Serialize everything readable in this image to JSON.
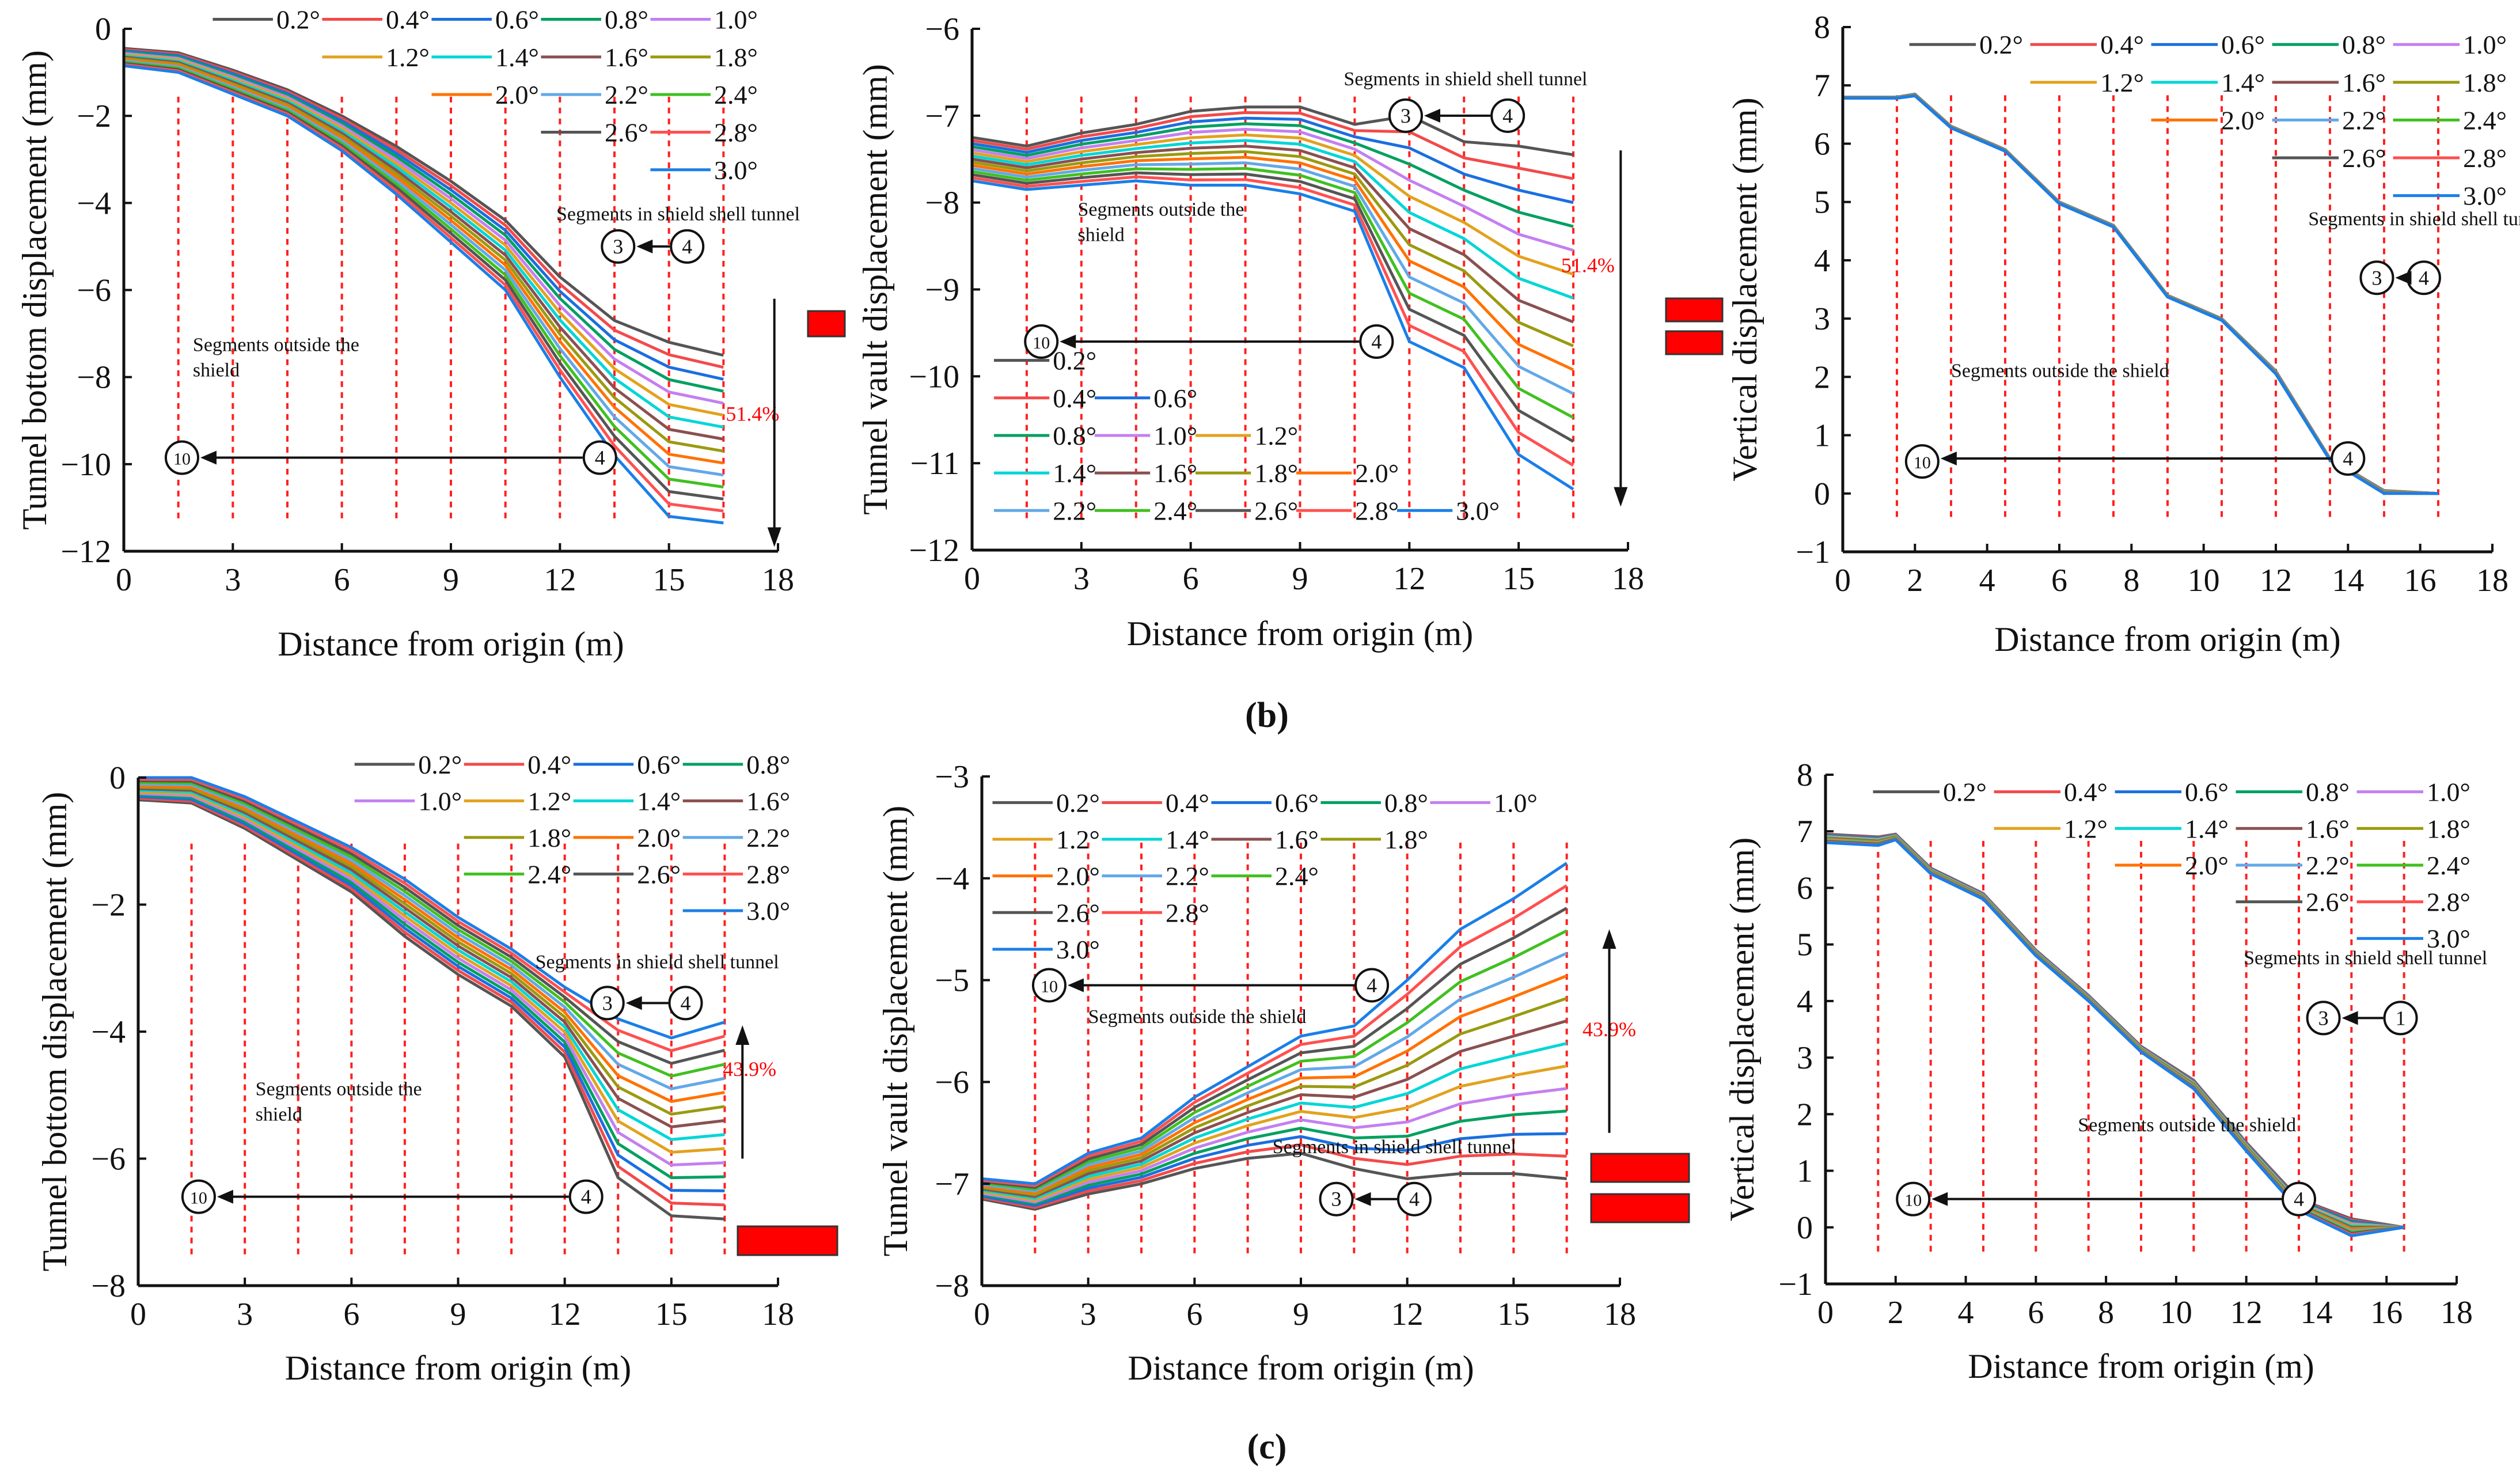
{
  "figure_labels": {
    "b": "(b)",
    "c": "(c)"
  },
  "chart_data": [
    {
      "id": "b-bottom",
      "type": "line",
      "xlabel": "Distance from origin (m)",
      "ylabel": "Tunnel bottom displacement (mm)",
      "xlim": [
        0,
        18
      ],
      "ylim": [
        -12,
        0
      ],
      "xticks": [
        0,
        3,
        6,
        9,
        12,
        15,
        18
      ],
      "yticks": [
        0,
        -2,
        -4,
        -6,
        -8,
        -10,
        -12
      ],
      "x": [
        0,
        1.5,
        3,
        4.5,
        6,
        7.5,
        9,
        10.5,
        12,
        13.5,
        15,
        16.5
      ],
      "series_first": [
        -0.45,
        -0.55,
        -0.95,
        -1.4,
        -2.0,
        -2.7,
        -3.5,
        -4.4,
        -5.7,
        -6.7,
        -7.2,
        -7.5
      ],
      "series_last": [
        -0.85,
        -1.0,
        -1.5,
        -2.0,
        -2.8,
        -3.8,
        -4.9,
        -6.0,
        -8.0,
        -9.8,
        -11.2,
        -11.35
      ],
      "legend_rows": [
        [
          "0.2°",
          "0.4°",
          "0.6°",
          "0.8°",
          "1.0°"
        ],
        [
          "1.2°",
          "1.4°",
          "1.6°",
          "1.8°"
        ],
        [
          "2.0°",
          "2.2°",
          "2.4°"
        ],
        [
          "2.6°",
          "2.8°"
        ],
        [
          "3.0°"
        ]
      ],
      "legend_align": "top-right",
      "annotations": {
        "shell": "Segments in shield shell tunnel",
        "outside": "Segments outside the shield",
        "from_ring": "4",
        "to_ring": "3",
        "far_from": "4",
        "far_to": "10",
        "percent": "51.4%"
      }
    },
    {
      "id": "b-vault",
      "type": "line",
      "xlabel": "Distance from origin (m)",
      "ylabel": "Tunnel vault displacement (mm)",
      "xlim": [
        0,
        18
      ],
      "ylim": [
        -12,
        -6
      ],
      "xticks": [
        0,
        3,
        6,
        9,
        12,
        15,
        18
      ],
      "yticks": [
        -6,
        -7,
        -8,
        -9,
        -10,
        -11,
        -12
      ],
      "x": [
        0,
        1.5,
        3,
        4.5,
        6,
        7.5,
        9,
        10.5,
        12,
        13.5,
        15,
        16.5
      ],
      "series_first": [
        -7.25,
        -7.35,
        -7.2,
        -7.1,
        -6.95,
        -6.9,
        -6.9,
        -7.1,
        -7.0,
        -7.3,
        -7.35,
        -7.45
      ],
      "series_last": [
        -7.75,
        -7.85,
        -7.8,
        -7.75,
        -7.8,
        -7.8,
        -7.9,
        -8.1,
        -9.6,
        -9.9,
        -10.9,
        -11.3
      ],
      "legend_rows": [
        [
          "0.2°"
        ],
        [
          "0.4°",
          "0.6°"
        ],
        [
          "0.8°",
          "1.0°",
          "1.2°"
        ],
        [
          "1.4°",
          "1.6°",
          "1.8°",
          "2.0°"
        ],
        [
          "2.2°",
          "2.4°",
          "2.6°",
          "2.8°",
          "3.0°"
        ]
      ],
      "legend_align": "bottom-left",
      "annotations": {
        "shell": "Segments in shield shell tunnel",
        "outside": "Segments outside the shield",
        "from_ring": "4",
        "to_ring": "3",
        "far_from": "4",
        "far_to": "10",
        "percent": "51.4%"
      }
    },
    {
      "id": "b-vertical",
      "type": "line",
      "xlabel": "Distance from origin (m)",
      "ylabel": "Vertical displacement (mm)",
      "xlim": [
        0,
        18
      ],
      "ylim": [
        -1,
        8
      ],
      "xticks": [
        0,
        2,
        4,
        6,
        8,
        10,
        12,
        14,
        16,
        18
      ],
      "yticks": [
        8,
        7,
        6,
        5,
        4,
        3,
        2,
        1,
        0,
        -1
      ],
      "x": [
        0,
        1.5,
        2,
        3,
        4.5,
        6,
        7.5,
        9,
        10.5,
        12,
        13.5,
        15,
        16.5
      ],
      "series_first": [
        6.8,
        6.8,
        6.85,
        6.3,
        5.9,
        5.0,
        4.6,
        3.4,
        3.0,
        2.1,
        0.6,
        0.05,
        0.0
      ],
      "series_last": [
        6.78,
        6.78,
        6.82,
        6.27,
        5.87,
        4.97,
        4.57,
        3.37,
        2.97,
        2.05,
        0.57,
        0.0,
        0.0
      ],
      "legend_rows": [
        [
          "0.2°",
          "0.4°",
          "0.6°",
          "0.8°",
          "1.0°"
        ],
        [
          "1.2°",
          "1.4°",
          "1.6°",
          "1.8°"
        ],
        [
          "2.0°",
          "2.2°",
          "2.4°"
        ],
        [
          "2.6°",
          "2.8°"
        ],
        [
          "3.0°"
        ]
      ],
      "legend_align": "top-right",
      "annotations": {
        "shell": "Segments in shield shell tunnel",
        "outside": "Segments outside the shield",
        "from_ring": "4",
        "to_ring": "3",
        "far_from": "4",
        "far_to": "10"
      }
    },
    {
      "id": "c-bottom",
      "type": "line",
      "xlabel": "Distance from origin (m)",
      "ylabel": "Tunnel bottom displacement (mm)",
      "xlim": [
        0,
        18
      ],
      "ylim": [
        -8,
        0
      ],
      "xticks": [
        0,
        3,
        6,
        9,
        12,
        15,
        18
      ],
      "yticks": [
        0,
        -2,
        -4,
        -6,
        -8
      ],
      "x": [
        0,
        1.5,
        3,
        4.5,
        6,
        7.5,
        9,
        10.5,
        12,
        13.5,
        15,
        16.5
      ],
      "series_first": [
        -0.35,
        -0.4,
        -0.8,
        -1.3,
        -1.8,
        -2.5,
        -3.1,
        -3.6,
        -4.4,
        -6.3,
        -6.9,
        -6.95
      ],
      "series_last": [
        0.0,
        0.0,
        -0.3,
        -0.7,
        -1.1,
        -1.6,
        -2.2,
        -2.7,
        -3.3,
        -3.8,
        -4.1,
        -3.85
      ],
      "legend_rows": [
        [
          "0.2°",
          "0.4°",
          "0.6°",
          "0.8°"
        ],
        [
          "1.0°",
          "1.2°",
          "1.4°",
          "1.6°"
        ],
        [
          "1.8°",
          "2.0°",
          "2.2°"
        ],
        [
          "2.4°",
          "2.6°",
          "2.8°"
        ],
        [
          "3.0°"
        ]
      ],
      "legend_align": "top-right",
      "annotations": {
        "shell": "Segments in shield shell tunnel",
        "outside": "Segments outside the shield",
        "from_ring": "4",
        "to_ring": "3",
        "far_from": "4",
        "far_to": "10",
        "percent": "43.9%"
      }
    },
    {
      "id": "c-vault",
      "type": "line",
      "xlabel": "Distance from origin (m)",
      "ylabel": "Tunnel vault displacement (mm)",
      "xlim": [
        0,
        18
      ],
      "ylim": [
        -8,
        -3
      ],
      "xticks": [
        0,
        3,
        6,
        9,
        12,
        15,
        18
      ],
      "yticks": [
        -3,
        -4,
        -5,
        -6,
        -7,
        -8
      ],
      "x": [
        0,
        1.5,
        3,
        4.5,
        6,
        7.5,
        9,
        10.5,
        12,
        13.5,
        15,
        16.5
      ],
      "series_first": [
        -7.15,
        -7.25,
        -7.1,
        -7.0,
        -6.85,
        -6.75,
        -6.7,
        -6.85,
        -6.95,
        -6.9,
        -6.9,
        -6.95
      ],
      "series_last": [
        -6.95,
        -7.0,
        -6.7,
        -6.55,
        -6.15,
        -5.85,
        -5.55,
        -5.45,
        -5.0,
        -4.5,
        -4.2,
        -3.85
      ],
      "legend_rows": [
        [
          "0.2°",
          "0.4°",
          "0.6°",
          "0.8°",
          "1.0°"
        ],
        [
          "1.2°",
          "1.4°",
          "1.6°",
          "1.8°"
        ],
        [
          "2.0°",
          "2.2°",
          "2.4°"
        ],
        [
          "2.6°",
          "2.8°"
        ],
        [
          "3.0°"
        ]
      ],
      "legend_align": "top-left",
      "annotations": {
        "shell": "Segments in shield shell tunnel",
        "outside": "Segments outside the shield",
        "from_ring": "4",
        "to_ring": "3",
        "far_from": "4",
        "far_to": "10",
        "percent": "43.9%"
      }
    },
    {
      "id": "c-vertical",
      "type": "line",
      "xlabel": "Distance from origin (m)",
      "ylabel": "Vertical displacement (mm)",
      "xlim": [
        0,
        18
      ],
      "ylim": [
        -1,
        8
      ],
      "xticks": [
        0,
        2,
        4,
        6,
        8,
        10,
        12,
        14,
        16,
        18
      ],
      "yticks": [
        8,
        7,
        6,
        5,
        4,
        3,
        2,
        1,
        0,
        -1
      ],
      "x": [
        0,
        1.5,
        2,
        3,
        4.5,
        6,
        7.5,
        9,
        10.5,
        12,
        13.5,
        15,
        16.5
      ],
      "series_first": [
        6.95,
        6.9,
        6.95,
        6.35,
        5.9,
        4.9,
        4.1,
        3.2,
        2.6,
        1.5,
        0.5,
        0.15,
        0.0
      ],
      "series_last": [
        6.8,
        6.75,
        6.85,
        6.25,
        5.8,
        4.8,
        4.0,
        3.1,
        2.45,
        1.35,
        0.3,
        -0.15,
        0.0
      ],
      "legend_rows": [
        [
          "0.2°",
          "0.4°",
          "0.6°",
          "0.8°",
          "1.0°"
        ],
        [
          "1.2°",
          "1.4°",
          "1.6°",
          "1.8°"
        ],
        [
          "2.0°",
          "2.2°",
          "2.4°"
        ],
        [
          "2.6°",
          "2.8°"
        ],
        [
          "3.0°"
        ]
      ],
      "legend_align": "top-right",
      "annotations": {
        "shell": "Segments in shield shell tunnel",
        "outside": "Segments outside the shield",
        "from_ring": "4",
        "to_ring": "3",
        "far_from": "4",
        "far_to": "10"
      }
    }
  ],
  "series_order": [
    "0.2°",
    "0.4°",
    "0.6°",
    "0.8°",
    "1.0°",
    "1.2°",
    "1.4°",
    "1.6°",
    "1.8°",
    "2.0°",
    "2.2°",
    "2.4°",
    "2.6°",
    "2.8°",
    "3.0°"
  ],
  "series_colors": {
    "0.2°": "#555555",
    "0.4°": "#f24a4a",
    "0.6°": "#1a6fe0",
    "0.8°": "#00a060",
    "1.0°": "#c47ff0",
    "1.2°": "#e2a21e",
    "1.4°": "#00d6d6",
    "1.6°": "#8a5050",
    "1.8°": "#9a9a10",
    "2.0°": "#ff7200",
    "2.2°": "#62a8e8",
    "2.4°": "#40c020",
    "2.6°": "#555555",
    "2.8°": "#ff5050",
    "3.0°": "#1a7fe8"
  },
  "ring_overrides": {
    "c-vertical": {
      "from_ring": "1"
    }
  },
  "accent_red": "#ff0000"
}
